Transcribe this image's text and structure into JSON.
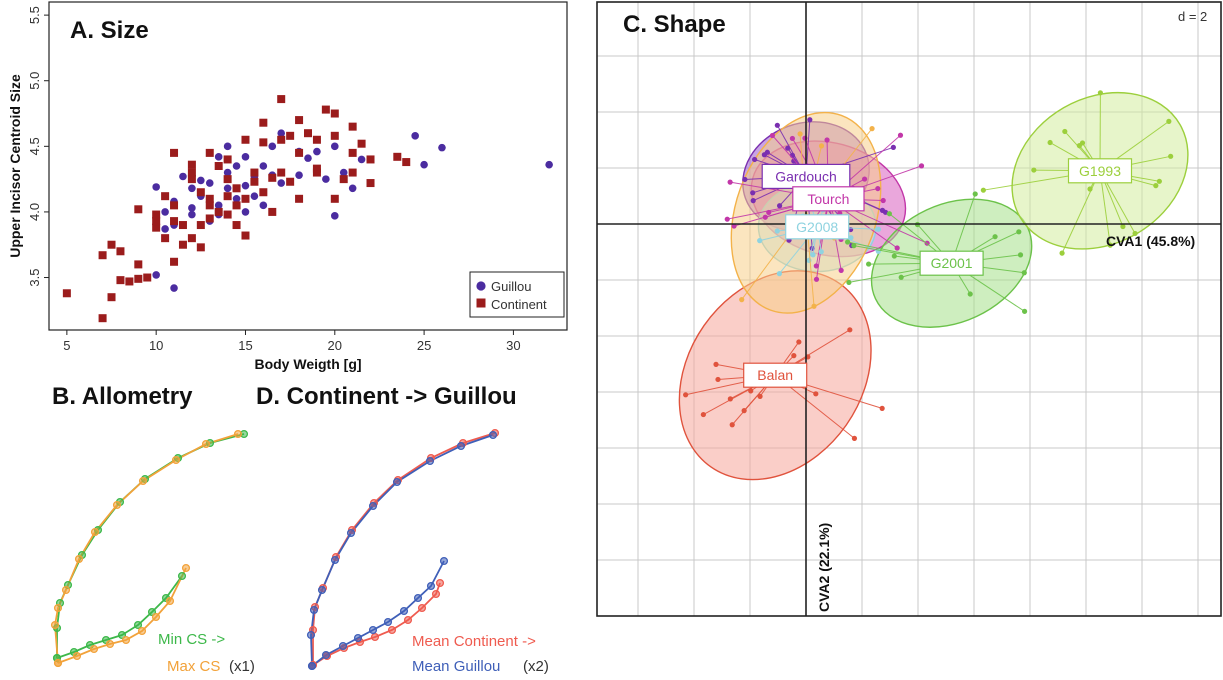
{
  "chart_data": [
    {
      "type": "scatter",
      "panel": "A",
      "title": "A. Size",
      "xlabel": "Body Weigth [g]",
      "ylabel": "Upper Incisor Centroid Size",
      "xlim": [
        4,
        33
      ],
      "ylim": [
        3.1,
        5.6
      ],
      "xticks": [
        "5",
        "10",
        "15",
        "20",
        "25",
        "30"
      ],
      "yticks": [
        "3.5",
        "4.0",
        "4.5",
        "5.0",
        "5.5"
      ],
      "grid": false,
      "legend_position": "bottom-right",
      "colors": {
        "Guillou": "#4b2ca0",
        "Continent": "#9b1c1c"
      },
      "series": [
        {
          "name": "Guillou",
          "marker": "circle",
          "points": [
            [
              10,
              4.19
            ],
            [
              10.5,
              4.0
            ],
            [
              11,
              4.08
            ],
            [
              11,
              3.42
            ],
            [
              11.5,
              4.27
            ],
            [
              12,
              4.18
            ],
            [
              12,
              3.98
            ],
            [
              12.5,
              4.24
            ],
            [
              13,
              4.22
            ],
            [
              13,
              4.1
            ],
            [
              13.5,
              4.05
            ],
            [
              13.5,
              3.98
            ],
            [
              14,
              4.3
            ],
            [
              14,
              4.18
            ],
            [
              14.5,
              4.1
            ],
            [
              15,
              4.42
            ],
            [
              15,
              4.2
            ],
            [
              15.5,
              4.27
            ],
            [
              15.5,
              4.12
            ],
            [
              16,
              4.35
            ],
            [
              16.5,
              4.28
            ],
            [
              17,
              4.22
            ],
            [
              18,
              4.46
            ],
            [
              18.5,
              4.41
            ],
            [
              19,
              4.32
            ],
            [
              19.5,
              4.25
            ],
            [
              20,
              4.5
            ],
            [
              20.5,
              4.3
            ],
            [
              20,
              3.97
            ],
            [
              21,
              4.18
            ],
            [
              24.5,
              4.58
            ],
            [
              25,
              4.36
            ],
            [
              26,
              4.49
            ],
            [
              32,
              4.36
            ],
            [
              10.5,
              3.87
            ],
            [
              12,
              4.03
            ],
            [
              13.5,
              4.42
            ],
            [
              14.5,
              4.35
            ],
            [
              16,
              4.05
            ],
            [
              17,
              4.6
            ],
            [
              11,
              3.9
            ],
            [
              12.5,
              4.12
            ],
            [
              15,
              4.0
            ],
            [
              18,
              4.28
            ],
            [
              21.5,
              4.4
            ],
            [
              10,
              3.52
            ],
            [
              13,
              3.93
            ],
            [
              14,
              4.5
            ],
            [
              19,
              4.46
            ],
            [
              16.5,
              4.5
            ]
          ]
        },
        {
          "name": "Continent",
          "marker": "square",
          "points": [
            [
              5,
              3.38
            ],
            [
              7,
              3.67
            ],
            [
              7.5,
              3.75
            ],
            [
              7,
              3.19
            ],
            [
              8,
              3.7
            ],
            [
              8,
              3.48
            ],
            [
              8.5,
              3.47
            ],
            [
              9,
              3.6
            ],
            [
              9,
              4.02
            ],
            [
              9,
              3.49
            ],
            [
              10,
              3.88
            ],
            [
              10,
              3.98
            ],
            [
              10,
              3.93
            ],
            [
              10.5,
              4.12
            ],
            [
              11,
              4.05
            ],
            [
              11,
              4.45
            ],
            [
              11,
              3.62
            ],
            [
              11.5,
              3.9
            ],
            [
              11.5,
              3.75
            ],
            [
              12,
              4.25
            ],
            [
              12,
              3.8
            ],
            [
              12.5,
              4.15
            ],
            [
              12.5,
              3.73
            ],
            [
              13,
              4.45
            ],
            [
              13,
              3.95
            ],
            [
              13,
              4.1
            ],
            [
              13.5,
              4.35
            ],
            [
              13.5,
              4.0
            ],
            [
              14,
              3.98
            ],
            [
              14,
              4.25
            ],
            [
              14,
              4.4
            ],
            [
              14.5,
              3.9
            ],
            [
              14.5,
              4.18
            ],
            [
              15,
              4.1
            ],
            [
              15,
              4.55
            ],
            [
              15,
              3.82
            ],
            [
              15.5,
              4.23
            ],
            [
              16,
              4.53
            ],
            [
              16,
              4.15
            ],
            [
              16,
              4.68
            ],
            [
              16.5,
              4.0
            ],
            [
              17,
              4.3
            ],
            [
              17,
              4.86
            ],
            [
              17.5,
              4.58
            ],
            [
              17.5,
              4.23
            ],
            [
              18,
              4.45
            ],
            [
              18,
              4.7
            ],
            [
              18,
              4.1
            ],
            [
              18.5,
              4.6
            ],
            [
              19,
              4.3
            ],
            [
              19,
              4.55
            ],
            [
              19.5,
              4.78
            ],
            [
              20,
              4.75
            ],
            [
              20,
              4.1
            ],
            [
              20,
              4.58
            ],
            [
              20.5,
              4.25
            ],
            [
              21,
              4.45
            ],
            [
              21,
              4.65
            ],
            [
              21.5,
              4.52
            ],
            [
              22,
              4.22
            ],
            [
              22,
              4.4
            ],
            [
              23.5,
              4.42
            ],
            [
              24,
              4.38
            ],
            [
              11,
              3.93
            ],
            [
              12,
              4.3
            ],
            [
              13,
              4.05
            ],
            [
              14.5,
              4.05
            ],
            [
              16.5,
              4.26
            ],
            [
              10.5,
              3.8
            ],
            [
              12,
              4.36
            ],
            [
              15.5,
              4.3
            ],
            [
              19,
              4.33
            ],
            [
              21,
              4.3
            ],
            [
              17,
              4.55
            ],
            [
              14,
              4.12
            ],
            [
              12.5,
              3.9
            ],
            [
              7.5,
              3.35
            ],
            [
              9.5,
              3.5
            ]
          ]
        }
      ]
    },
    {
      "type": "line",
      "panel": "B",
      "title": "B. Allometry",
      "legend_lines": [
        "Min CS ->",
        "Max CS",
        "(x1)"
      ],
      "colors": {
        "Min CS": "#3db84a",
        "Max CS": "#f2a23a"
      },
      "series": [
        {
          "name": "Min CS",
          "outer": [
            [
              244,
              434
            ],
            [
              210,
              443
            ],
            [
              178,
              458
            ],
            [
              145,
              479
            ],
            [
              120,
              502
            ],
            [
              98,
              530
            ],
            [
              82,
              555
            ],
            [
              68,
              585
            ],
            [
              60,
              603
            ],
            [
              57,
              628
            ],
            [
              57,
              658
            ]
          ],
          "inner": [
            [
              57,
              658
            ],
            [
              74,
              652
            ],
            [
              90,
              645
            ],
            [
              106,
              640
            ],
            [
              122,
              635
            ],
            [
              138,
              625
            ],
            [
              152,
              612
            ],
            [
              166,
              598
            ],
            [
              182,
              576
            ]
          ]
        },
        {
          "name": "Max CS",
          "outer": [
            [
              238,
              434
            ],
            [
              206,
              444
            ],
            [
              176,
              460
            ],
            [
              143,
              481
            ],
            [
              117,
              505
            ],
            [
              95,
              532
            ],
            [
              79,
              559
            ],
            [
              66,
              590
            ],
            [
              58,
              608
            ],
            [
              55,
              625
            ],
            [
              58,
              663
            ]
          ],
          "inner": [
            [
              58,
              663
            ],
            [
              77,
              656
            ],
            [
              94,
              649
            ],
            [
              110,
              644
            ],
            [
              126,
              640
            ],
            [
              142,
              631
            ],
            [
              156,
              617
            ],
            [
              170,
              601
            ],
            [
              186,
              568
            ]
          ]
        }
      ]
    },
    {
      "type": "line",
      "panel": "D",
      "title": "D. Continent -> Guillou",
      "legend_lines": [
        "Mean Continent ->",
        "Mean Guillou",
        "(x2)"
      ],
      "colors": {
        "Mean Continent": "#ef5b4f",
        "Mean Guillou": "#3f5fb8"
      },
      "series": [
        {
          "name": "Mean Continent",
          "outer": [
            [
              495,
              433
            ],
            [
              463,
              443
            ],
            [
              431,
              458
            ],
            [
              398,
              480
            ],
            [
              374,
              503
            ],
            [
              352,
              530
            ],
            [
              336,
              557
            ],
            [
              323,
              588
            ],
            [
              315,
              607
            ],
            [
              313,
              630
            ],
            [
              313,
              665
            ]
          ],
          "inner": [
            [
              313,
              665
            ],
            [
              327,
              656
            ],
            [
              344,
              648
            ],
            [
              360,
              642
            ],
            [
              375,
              637
            ],
            [
              392,
              630
            ],
            [
              408,
              620
            ],
            [
              422,
              608
            ],
            [
              436,
              594
            ],
            [
              440,
              583
            ]
          ]
        },
        {
          "name": "Mean Guillou",
          "outer": [
            [
              493,
              435
            ],
            [
              461,
              446
            ],
            [
              430,
              461
            ],
            [
              397,
              482
            ],
            [
              373,
              506
            ],
            [
              351,
              533
            ],
            [
              335,
              560
            ],
            [
              322,
              590
            ],
            [
              314,
              610
            ],
            [
              311,
              635
            ],
            [
              312,
              666
            ]
          ],
          "inner": [
            [
              312,
              666
            ],
            [
              326,
              655
            ],
            [
              343,
              646
            ],
            [
              358,
              638
            ],
            [
              373,
              630
            ],
            [
              388,
              622
            ],
            [
              404,
              611
            ],
            [
              418,
              598
            ],
            [
              431,
              586
            ],
            [
              444,
              561
            ]
          ]
        }
      ]
    },
    {
      "type": "scatter",
      "panel": "C",
      "title": "C. Shape",
      "scale_label": "d = 2",
      "axis1_label": "CVA1 (45.8%)",
      "axis2_label": "CVA2 (22.1%)",
      "groups": [
        {
          "name": "Gardouch",
          "color": "#7a2fb0",
          "fill": "#9b59d0",
          "centroid": [
            0,
            1.7
          ],
          "ellipse_radius": [
            2.3,
            1.9
          ],
          "ellipse_rotation": -20
        },
        {
          "name": "Tourch",
          "color": "#c237a8",
          "fill": "#d85fc0",
          "centroid": [
            0.8,
            0.9
          ],
          "ellipse_radius": [
            2.8,
            2.0
          ],
          "ellipse_rotation": 15
        },
        {
          "name": "G2008",
          "color": "#8fd3e0",
          "fill": "#b9e6ee",
          "centroid": [
            0.4,
            -0.1
          ],
          "ellipse_radius": [
            2.1,
            1.6
          ],
          "ellipse_rotation": 0
        },
        {
          "name": "G2001",
          "color": "#6cc24a",
          "fill": "#a6e08a",
          "centroid": [
            5.2,
            -1.4
          ],
          "ellipse_radius": [
            3.0,
            2.1
          ],
          "ellipse_rotation": -25
        },
        {
          "name": "G1993",
          "color": "#9ccf3c",
          "fill": "#d4ec9e",
          "centroid": [
            10.5,
            1.9
          ],
          "ellipse_radius": [
            3.3,
            2.6
          ],
          "ellipse_rotation": -30
        },
        {
          "name": "Balan",
          "color": "#e0533d",
          "fill": "#f6a59a",
          "centroid": [
            -1.1,
            -5.4
          ],
          "ellipse_radius": [
            4.0,
            3.1
          ],
          "ellipse_rotation": -55
        },
        {
          "name": "",
          "color": "#f3b24a",
          "fill": "#f7d08a",
          "centroid": [
            0.0,
            0.4
          ],
          "ellipse_radius": [
            2.5,
            3.7
          ],
          "ellipse_rotation": 20
        }
      ]
    }
  ]
}
